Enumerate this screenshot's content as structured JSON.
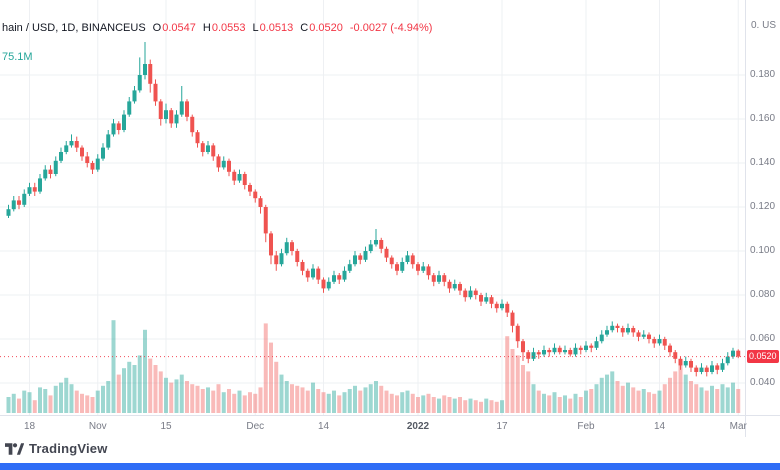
{
  "header": {
    "symbol": "hain / USD, 1D, BINANCEUS",
    "ohlc": [
      {
        "label": "O",
        "value": "0.0547"
      },
      {
        "label": "H",
        "value": "0.0553"
      },
      {
        "label": "L",
        "value": "0.0513"
      },
      {
        "label": "C",
        "value": "0.0520"
      }
    ],
    "change": "-0.0027 (-4.94%)",
    "volume": "75.1M"
  },
  "top_right_label": "0. US",
  "attribution": {
    "label": "TradingView"
  },
  "colors": {
    "up": "#26a69a",
    "down": "#ef5350",
    "up_volume": "rgba(38,166,154,0.45)",
    "down_volume": "rgba(239,83,80,0.40)",
    "negative": "#f23645",
    "grid": "#eef0f3",
    "axis_text": "#787b86",
    "price_line": "#f23645",
    "footer_bar": "#2f6df6"
  },
  "chart_data": {
    "type": "candlestick",
    "volume_pane": true,
    "title": "hain / USD daily candlestick chart with volume, BINANCEUS",
    "ylim": [
      0.026,
      0.214
    ],
    "price_line": 0.052,
    "y_ticks": [
      {
        "label": "0.180",
        "value": 0.18
      },
      {
        "label": "0.160",
        "value": 0.16
      },
      {
        "label": "0.140",
        "value": 0.14
      },
      {
        "label": "0.120",
        "value": 0.12
      },
      {
        "label": "0.100",
        "value": 0.1
      },
      {
        "label": "0.080",
        "value": 0.08
      },
      {
        "label": "0.060",
        "value": 0.06
      },
      {
        "label": "0.040",
        "value": 0.04
      }
    ],
    "x_axis": [
      {
        "label": "18",
        "i": 4
      },
      {
        "label": "Nov",
        "i": 17
      },
      {
        "label": "15",
        "i": 30
      },
      {
        "label": "Dec",
        "i": 47
      },
      {
        "label": "14",
        "i": 60
      },
      {
        "label": "2022",
        "i": 78,
        "bold": true
      },
      {
        "label": "17",
        "i": 94
      },
      {
        "label": "Feb",
        "i": 110
      },
      {
        "label": "14",
        "i": 124
      },
      {
        "label": "Mar",
        "i": 139
      }
    ],
    "volume_unit": "M",
    "candles": [
      [
        0.116,
        0.121,
        0.115,
        0.119,
        50
      ],
      [
        0.119,
        0.125,
        0.118,
        0.123,
        60
      ],
      [
        0.123,
        0.125,
        0.119,
        0.121,
        45
      ],
      [
        0.121,
        0.128,
        0.12,
        0.126,
        70
      ],
      [
        0.126,
        0.131,
        0.125,
        0.129,
        65
      ],
      [
        0.129,
        0.131,
        0.125,
        0.127,
        40
      ],
      [
        0.127,
        0.135,
        0.126,
        0.133,
        80
      ],
      [
        0.133,
        0.139,
        0.132,
        0.137,
        75
      ],
      [
        0.137,
        0.139,
        0.133,
        0.135,
        55
      ],
      [
        0.135,
        0.143,
        0.134,
        0.141,
        85
      ],
      [
        0.141,
        0.147,
        0.14,
        0.145,
        95
      ],
      [
        0.145,
        0.15,
        0.144,
        0.148,
        110
      ],
      [
        0.148,
        0.153,
        0.147,
        0.15,
        90
      ],
      [
        0.15,
        0.152,
        0.145,
        0.147,
        70
      ],
      [
        0.147,
        0.148,
        0.141,
        0.143,
        60
      ],
      [
        0.143,
        0.145,
        0.138,
        0.14,
        55
      ],
      [
        0.14,
        0.141,
        0.135,
        0.137,
        50
      ],
      [
        0.137,
        0.144,
        0.136,
        0.142,
        70
      ],
      [
        0.142,
        0.149,
        0.141,
        0.147,
        85
      ],
      [
        0.147,
        0.155,
        0.146,
        0.153,
        100
      ],
      [
        0.153,
        0.16,
        0.152,
        0.158,
        290
      ],
      [
        0.158,
        0.159,
        0.153,
        0.155,
        120
      ],
      [
        0.155,
        0.164,
        0.154,
        0.162,
        140
      ],
      [
        0.162,
        0.17,
        0.161,
        0.168,
        160
      ],
      [
        0.168,
        0.175,
        0.167,
        0.173,
        150
      ],
      [
        0.173,
        0.188,
        0.172,
        0.18,
        180
      ],
      [
        0.18,
        0.195,
        0.178,
        0.185,
        260
      ],
      [
        0.185,
        0.187,
        0.172,
        0.176,
        170
      ],
      [
        0.176,
        0.178,
        0.166,
        0.168,
        150
      ],
      [
        0.168,
        0.169,
        0.157,
        0.16,
        130
      ],
      [
        0.16,
        0.167,
        0.158,
        0.164,
        110
      ],
      [
        0.164,
        0.165,
        0.156,
        0.158,
        95
      ],
      [
        0.158,
        0.164,
        0.156,
        0.162,
        105
      ],
      [
        0.162,
        0.175,
        0.161,
        0.168,
        120
      ],
      [
        0.168,
        0.169,
        0.159,
        0.161,
        100
      ],
      [
        0.161,
        0.162,
        0.152,
        0.154,
        90
      ],
      [
        0.154,
        0.155,
        0.147,
        0.149,
        85
      ],
      [
        0.149,
        0.15,
        0.143,
        0.145,
        75
      ],
      [
        0.145,
        0.15,
        0.144,
        0.148,
        80
      ],
      [
        0.148,
        0.149,
        0.141,
        0.143,
        70
      ],
      [
        0.143,
        0.144,
        0.136,
        0.138,
        90
      ],
      [
        0.138,
        0.143,
        0.137,
        0.141,
        65
      ],
      [
        0.141,
        0.142,
        0.134,
        0.136,
        75
      ],
      [
        0.136,
        0.137,
        0.13,
        0.132,
        60
      ],
      [
        0.132,
        0.137,
        0.131,
        0.135,
        70
      ],
      [
        0.135,
        0.136,
        0.128,
        0.13,
        55
      ],
      [
        0.13,
        0.131,
        0.125,
        0.127,
        65
      ],
      [
        0.127,
        0.128,
        0.122,
        0.124,
        60
      ],
      [
        0.124,
        0.125,
        0.117,
        0.12,
        80
      ],
      [
        0.12,
        0.121,
        0.104,
        0.108,
        280
      ],
      [
        0.108,
        0.109,
        0.094,
        0.098,
        220
      ],
      [
        0.098,
        0.1,
        0.091,
        0.094,
        160
      ],
      [
        0.094,
        0.101,
        0.093,
        0.099,
        120
      ],
      [
        0.099,
        0.106,
        0.098,
        0.104,
        100
      ],
      [
        0.104,
        0.105,
        0.098,
        0.1,
        90
      ],
      [
        0.1,
        0.101,
        0.093,
        0.095,
        85
      ],
      [
        0.095,
        0.096,
        0.089,
        0.091,
        80
      ],
      [
        0.091,
        0.092,
        0.086,
        0.088,
        70
      ],
      [
        0.088,
        0.094,
        0.087,
        0.092,
        95
      ],
      [
        0.092,
        0.093,
        0.085,
        0.087,
        75
      ],
      [
        0.087,
        0.088,
        0.081,
        0.083,
        65
      ],
      [
        0.083,
        0.088,
        0.082,
        0.086,
        60
      ],
      [
        0.086,
        0.091,
        0.085,
        0.089,
        70
      ],
      [
        0.089,
        0.09,
        0.085,
        0.087,
        55
      ],
      [
        0.087,
        0.093,
        0.086,
        0.091,
        65
      ],
      [
        0.091,
        0.096,
        0.09,
        0.094,
        75
      ],
      [
        0.094,
        0.1,
        0.093,
        0.098,
        85
      ],
      [
        0.098,
        0.099,
        0.094,
        0.096,
        70
      ],
      [
        0.096,
        0.102,
        0.095,
        0.1,
        80
      ],
      [
        0.1,
        0.105,
        0.099,
        0.103,
        90
      ],
      [
        0.103,
        0.11,
        0.102,
        0.105,
        100
      ],
      [
        0.105,
        0.106,
        0.099,
        0.101,
        85
      ],
      [
        0.101,
        0.102,
        0.095,
        0.097,
        70
      ],
      [
        0.097,
        0.098,
        0.092,
        0.094,
        60
      ],
      [
        0.094,
        0.095,
        0.089,
        0.091,
        55
      ],
      [
        0.091,
        0.097,
        0.09,
        0.095,
        65
      ],
      [
        0.095,
        0.1,
        0.094,
        0.098,
        70
      ],
      [
        0.098,
        0.099,
        0.092,
        0.094,
        60
      ],
      [
        0.094,
        0.095,
        0.089,
        0.091,
        50
      ],
      [
        0.091,
        0.095,
        0.09,
        0.093,
        55
      ],
      [
        0.093,
        0.094,
        0.087,
        0.089,
        60
      ],
      [
        0.089,
        0.09,
        0.084,
        0.086,
        50
      ],
      [
        0.086,
        0.091,
        0.085,
        0.089,
        45
      ],
      [
        0.089,
        0.09,
        0.084,
        0.086,
        55
      ],
      [
        0.086,
        0.087,
        0.081,
        0.083,
        50
      ],
      [
        0.083,
        0.087,
        0.082,
        0.085,
        45
      ],
      [
        0.085,
        0.086,
        0.08,
        0.082,
        50
      ],
      [
        0.082,
        0.083,
        0.077,
        0.079,
        40
      ],
      [
        0.079,
        0.084,
        0.078,
        0.082,
        45
      ],
      [
        0.082,
        0.083,
        0.078,
        0.08,
        40
      ],
      [
        0.08,
        0.081,
        0.075,
        0.077,
        35
      ],
      [
        0.077,
        0.081,
        0.076,
        0.079,
        45
      ],
      [
        0.079,
        0.08,
        0.074,
        0.076,
        40
      ],
      [
        0.076,
        0.077,
        0.072,
        0.074,
        35
      ],
      [
        0.074,
        0.078,
        0.073,
        0.076,
        40
      ],
      [
        0.076,
        0.077,
        0.07,
        0.072,
        240
      ],
      [
        0.072,
        0.073,
        0.063,
        0.066,
        200
      ],
      [
        0.066,
        0.067,
        0.056,
        0.059,
        180
      ],
      [
        0.059,
        0.06,
        0.05,
        0.054,
        150
      ],
      [
        0.054,
        0.055,
        0.049,
        0.051,
        130
      ],
      [
        0.051,
        0.056,
        0.05,
        0.054,
        90
      ],
      [
        0.054,
        0.055,
        0.051,
        0.053,
        70
      ],
      [
        0.053,
        0.057,
        0.052,
        0.055,
        60
      ],
      [
        0.055,
        0.056,
        0.052,
        0.054,
        55
      ],
      [
        0.054,
        0.058,
        0.053,
        0.056,
        65
      ],
      [
        0.056,
        0.057,
        0.053,
        0.054,
        50
      ],
      [
        0.054,
        0.057,
        0.053,
        0.055,
        55
      ],
      [
        0.055,
        0.056,
        0.052,
        0.053,
        45
      ],
      [
        0.053,
        0.058,
        0.052,
        0.056,
        60
      ],
      [
        0.056,
        0.057,
        0.053,
        0.055,
        50
      ],
      [
        0.055,
        0.059,
        0.054,
        0.057,
        70
      ],
      [
        0.057,
        0.058,
        0.054,
        0.056,
        75
      ],
      [
        0.056,
        0.061,
        0.055,
        0.059,
        90
      ],
      [
        0.059,
        0.064,
        0.058,
        0.062,
        110
      ],
      [
        0.062,
        0.066,
        0.061,
        0.064,
        120
      ],
      [
        0.064,
        0.068,
        0.063,
        0.066,
        130
      ],
      [
        0.066,
        0.067,
        0.063,
        0.065,
        100
      ],
      [
        0.065,
        0.066,
        0.061,
        0.063,
        85
      ],
      [
        0.063,
        0.067,
        0.062,
        0.065,
        95
      ],
      [
        0.065,
        0.066,
        0.061,
        0.063,
        80
      ],
      [
        0.063,
        0.064,
        0.059,
        0.061,
        70
      ],
      [
        0.061,
        0.064,
        0.06,
        0.062,
        75
      ],
      [
        0.062,
        0.063,
        0.058,
        0.06,
        65
      ],
      [
        0.06,
        0.061,
        0.056,
        0.058,
        60
      ],
      [
        0.058,
        0.062,
        0.057,
        0.06,
        70
      ],
      [
        0.06,
        0.061,
        0.055,
        0.057,
        90
      ],
      [
        0.057,
        0.058,
        0.052,
        0.054,
        110
      ],
      [
        0.054,
        0.055,
        0.049,
        0.051,
        130
      ],
      [
        0.051,
        0.052,
        0.046,
        0.048,
        150
      ],
      [
        0.048,
        0.052,
        0.047,
        0.05,
        120
      ],
      [
        0.05,
        0.051,
        0.045,
        0.047,
        100
      ],
      [
        0.047,
        0.048,
        0.043,
        0.045,
        90
      ],
      [
        0.045,
        0.049,
        0.044,
        0.047,
        80
      ],
      [
        0.047,
        0.048,
        0.043,
        0.045,
        70
      ],
      [
        0.045,
        0.05,
        0.044,
        0.048,
        85
      ],
      [
        0.048,
        0.049,
        0.044,
        0.046,
        75
      ],
      [
        0.046,
        0.051,
        0.045,
        0.049,
        90
      ],
      [
        0.049,
        0.054,
        0.048,
        0.052,
        80
      ],
      [
        0.052,
        0.056,
        0.051,
        0.0547,
        95
      ],
      [
        0.0547,
        0.0553,
        0.0513,
        0.052,
        75.1
      ]
    ]
  }
}
